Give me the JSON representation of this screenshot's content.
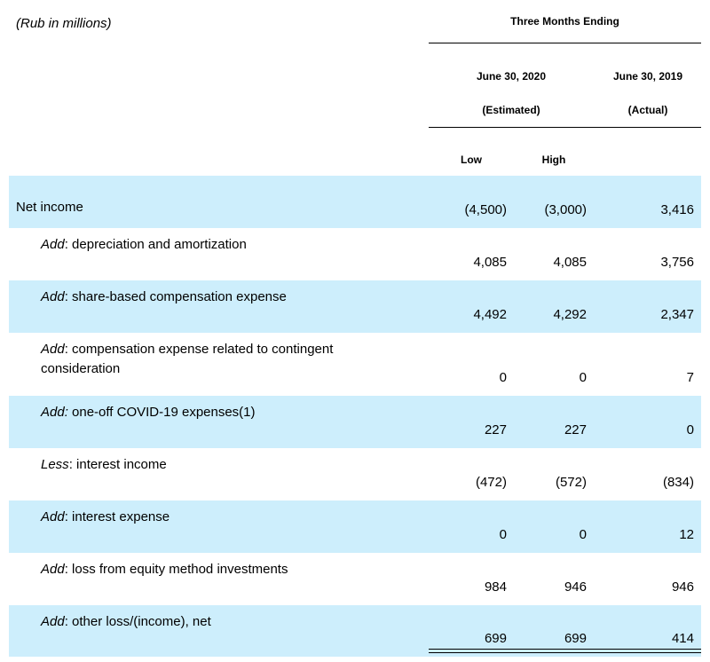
{
  "header": {
    "units": "(Rub in millions)",
    "period": "Three Months Ending",
    "columns": [
      {
        "date": "June 30, 2020",
        "note": "(Estimated)"
      },
      {
        "date": "June 30, 2019",
        "note": "(Actual)"
      }
    ],
    "subcolumns": [
      "Low",
      "High"
    ]
  },
  "table": {
    "rows": [
      {
        "label": "Net income",
        "low": "(4,500)",
        "high": "(3,000)",
        "actual": "3,416"
      },
      {
        "prefix": "Add",
        "label": ": depreciation and amortization",
        "low": "4,085",
        "high": "4,085",
        "actual": "3,756"
      },
      {
        "prefix": "Add",
        "label": ": share-based compensation expense",
        "low": "4,492",
        "high": "4,292",
        "actual": "2,347"
      },
      {
        "prefix": "Add",
        "label": ": compensation expense related to contingent consideration",
        "low": "0",
        "high": "0",
        "actual": "7"
      },
      {
        "prefix": "Add:",
        "label": " one-off COVID-19 expenses(1)",
        "low": "227",
        "high": "227",
        "actual": "0"
      },
      {
        "prefix": "Less",
        "label": ": interest income",
        "low": "(472)",
        "high": "(572)",
        "actual": "(834)"
      },
      {
        "prefix": "Add",
        "label": ": interest expense",
        "low": "0",
        "high": "0",
        "actual": "12"
      },
      {
        "prefix": "Add",
        "label": ": loss from equity method investments",
        "low": "984",
        "high": "946",
        "actual": "946"
      },
      {
        "prefix": "Add",
        "label": ": other loss/(income), net",
        "low": "699",
        "high": "699",
        "actual": "414"
      }
    ]
  }
}
